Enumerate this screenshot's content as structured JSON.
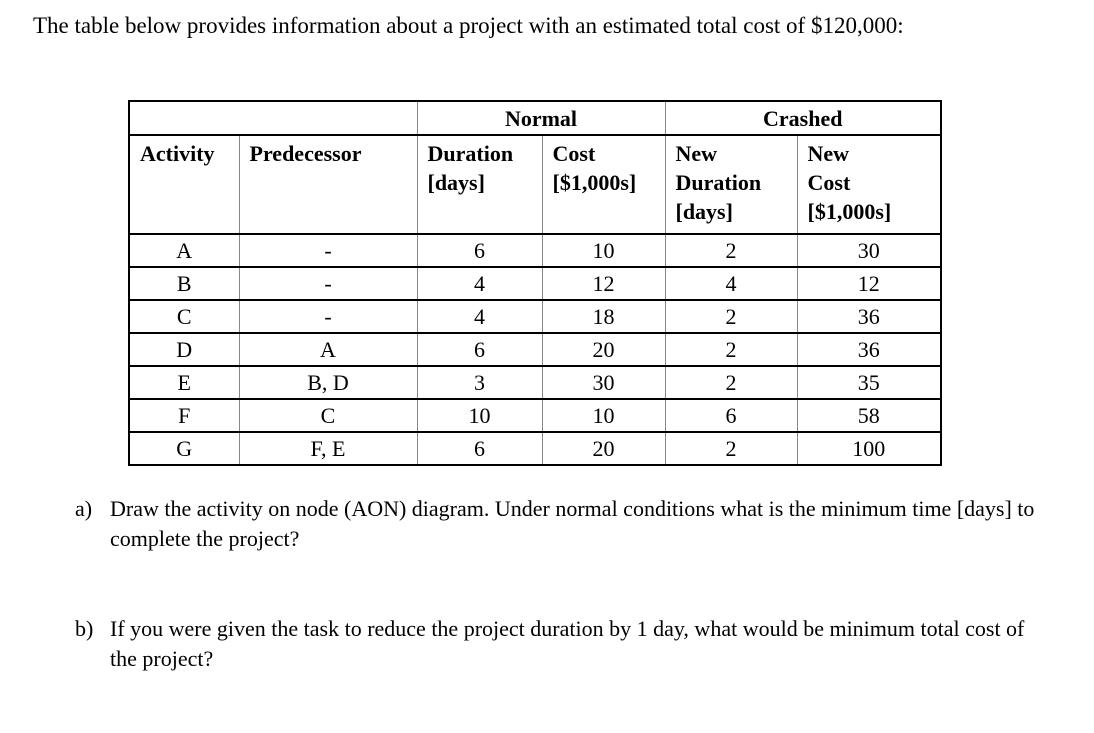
{
  "intro": "The table below provides information about a project with an estimated total cost of $120,000:",
  "table": {
    "group_headers": {
      "normal": "Normal",
      "crashed": "Crashed"
    },
    "headers": {
      "activity": "Activity",
      "predecessor": "Predecessor",
      "normal_duration": [
        "Duration",
        "[days]"
      ],
      "normal_cost": [
        "Cost",
        "[$1,000s]"
      ],
      "crashed_duration": [
        "New",
        "Duration",
        "[days]"
      ],
      "crashed_cost": [
        "New",
        "Cost",
        "[$1,000s]"
      ]
    },
    "rows": [
      [
        "A",
        "-",
        "6",
        "10",
        "2",
        "30"
      ],
      [
        "B",
        "-",
        "4",
        "12",
        "4",
        "12"
      ],
      [
        "C",
        "-",
        "4",
        "18",
        "2",
        "36"
      ],
      [
        "D",
        "A",
        "6",
        "20",
        "2",
        "36"
      ],
      [
        "E",
        "B, D",
        "3",
        "30",
        "2",
        "35"
      ],
      [
        "F",
        "C",
        "10",
        "10",
        "6",
        "58"
      ],
      [
        "G",
        "F, E",
        "6",
        "20",
        "2",
        "100"
      ]
    ]
  },
  "questions": [
    {
      "label": "a)",
      "text": "Draw the activity on node (AON) diagram. Under normal conditions what is the minimum time [days] to complete the project?"
    },
    {
      "label": "b)",
      "text": "If you were given the task to reduce the project duration by 1 day, what would be minimum total cost of the project?"
    }
  ]
}
